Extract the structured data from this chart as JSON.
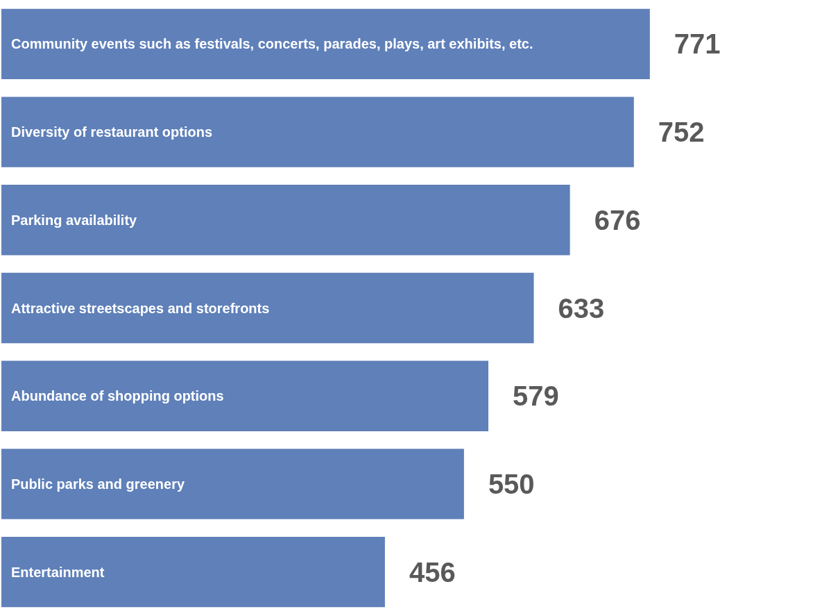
{
  "chart_data": {
    "type": "bar",
    "orientation": "horizontal",
    "categories": [
      "Community events such as festivals, concerts, parades, plays, art exhibits, etc.",
      "Diversity of restaurant options",
      "Parking availability",
      "Attractive streetscapes and storefronts",
      "Abundance of shopping options",
      "Public parks and greenery",
      "Entertainment"
    ],
    "values": [
      771,
      752,
      676,
      633,
      579,
      550,
      456
    ],
    "color": "#5f80b9",
    "data_labels": true,
    "tick_labels": "y"
  }
}
